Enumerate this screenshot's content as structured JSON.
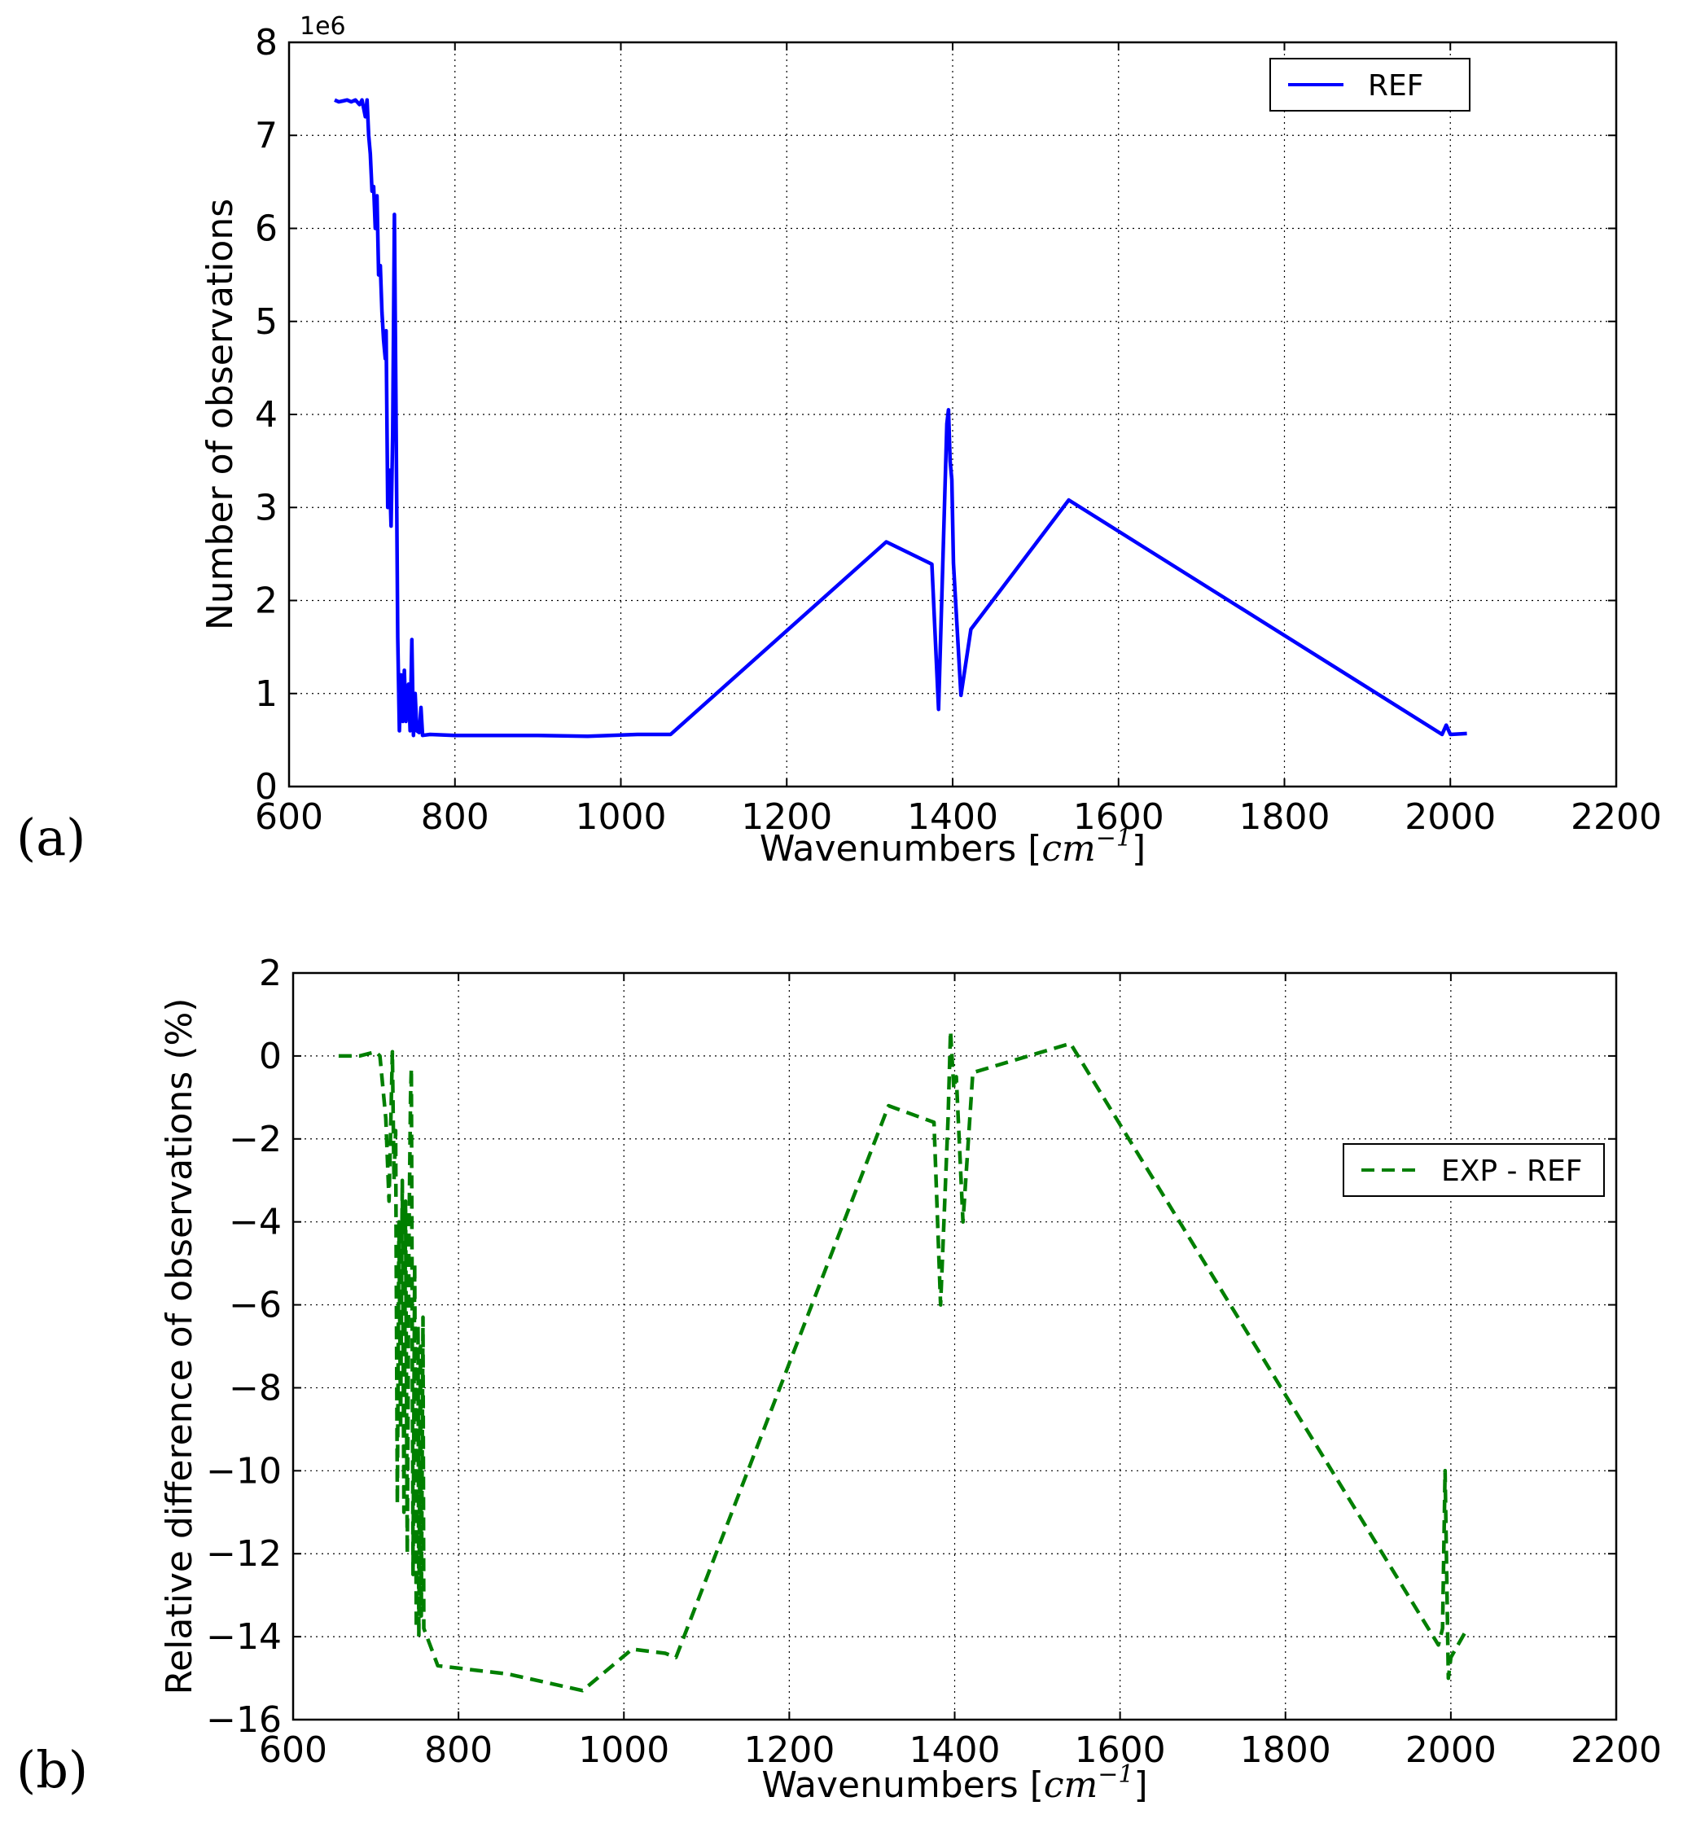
{
  "chart_data": [
    {
      "panel": "(a)",
      "type": "line",
      "xlabel_main": "Wavenumbers [",
      "xlabel_unit": "cm",
      "xlabel_exp": "−1",
      "xlabel_close": "]",
      "ylabel": "Number of observations",
      "y_offset_label": "1e6",
      "xlim": [
        600,
        2200
      ],
      "ylim": [
        0,
        8
      ],
      "xticks": [
        600,
        800,
        1000,
        1200,
        1400,
        1600,
        1800,
        2000,
        2200
      ],
      "yticks": [
        0,
        1,
        2,
        3,
        4,
        5,
        6,
        7,
        8
      ],
      "grid": true,
      "legend_position": "top-right",
      "series": [
        {
          "name": "REF",
          "style": "solid",
          "color": "#0000ff",
          "points": [
            [
              655,
              7.38
            ],
            [
              660,
              7.36
            ],
            [
              665,
              7.37
            ],
            [
              670,
              7.38
            ],
            [
              675,
              7.36
            ],
            [
              680,
              7.38
            ],
            [
              685,
              7.33
            ],
            [
              688,
              7.38
            ],
            [
              692,
              7.2
            ],
            [
              694,
              7.38
            ],
            [
              696,
              7.0
            ],
            [
              698,
              6.8
            ],
            [
              700,
              6.4
            ],
            [
              702,
              6.45
            ],
            [
              704,
              6.0
            ],
            [
              706,
              6.35
            ],
            [
              708,
              5.5
            ],
            [
              710,
              5.6
            ],
            [
              712,
              5.1
            ],
            [
              714,
              4.8
            ],
            [
              716,
              4.6
            ],
            [
              717,
              4.9
            ],
            [
              719,
              3.0
            ],
            [
              721,
              3.4
            ],
            [
              723,
              2.8
            ],
            [
              725,
              3.8
            ],
            [
              727,
              6.15
            ],
            [
              729,
              4.0
            ],
            [
              731,
              1.6
            ],
            [
              733,
              0.6
            ],
            [
              735,
              1.2
            ],
            [
              737,
              0.7
            ],
            [
              739,
              1.25
            ],
            [
              741,
              0.7
            ],
            [
              744,
              1.1
            ],
            [
              746,
              0.6
            ],
            [
              748,
              1.58
            ],
            [
              750,
              0.55
            ],
            [
              752,
              1.0
            ],
            [
              754,
              0.6
            ],
            [
              757,
              0.58
            ],
            [
              759,
              0.85
            ],
            [
              761,
              0.55
            ],
            [
              770,
              0.56
            ],
            [
              800,
              0.55
            ],
            [
              900,
              0.55
            ],
            [
              960,
              0.54
            ],
            [
              1020,
              0.56
            ],
            [
              1060,
              0.56
            ],
            [
              1320,
              2.63
            ],
            [
              1375,
              2.39
            ],
            [
              1383,
              0.83
            ],
            [
              1393,
              3.9
            ],
            [
              1395,
              4.05
            ],
            [
              1397,
              3.5
            ],
            [
              1399,
              3.3
            ],
            [
              1401,
              2.4
            ],
            [
              1410,
              0.98
            ],
            [
              1422,
              1.69
            ],
            [
              1540,
              3.08
            ],
            [
              1990,
              0.56
            ],
            [
              1995,
              0.66
            ],
            [
              2000,
              0.56
            ],
            [
              2020,
              0.57
            ]
          ]
        }
      ]
    },
    {
      "panel": "(b)",
      "type": "line",
      "xlabel_main": "Wavenumbers [",
      "xlabel_unit": "cm",
      "xlabel_exp": "−1",
      "xlabel_close": "]",
      "ylabel": "Relative difference of observations (%)",
      "xlim": [
        600,
        2200
      ],
      "ylim": [
        -16,
        2
      ],
      "xticks": [
        600,
        800,
        1000,
        1200,
        1400,
        1600,
        1800,
        2000,
        2200
      ],
      "yticks": [
        -16,
        -14,
        -12,
        -10,
        -8,
        -6,
        -4,
        -2,
        0,
        2
      ],
      "grid": true,
      "legend_position": "center-right",
      "series": [
        {
          "name": "EXP - REF",
          "style": "dashed",
          "color": "#007f00",
          "points": [
            [
              655,
              0.0
            ],
            [
              680,
              0.0
            ],
            [
              700,
              0.1
            ],
            [
              705,
              0.0
            ],
            [
              712,
              -1.5
            ],
            [
              716,
              -3.5
            ],
            [
              720,
              0.1
            ],
            [
              722,
              -3.0
            ],
            [
              724,
              -1.8
            ],
            [
              726,
              -10.8
            ],
            [
              728,
              -4.0
            ],
            [
              730,
              -9.0
            ],
            [
              732,
              -3.0
            ],
            [
              734,
              -11.0
            ],
            [
              736,
              -3.5
            ],
            [
              738,
              -12.0
            ],
            [
              740,
              -4.5
            ],
            [
              742,
              -1.0
            ],
            [
              743,
              -0.3
            ],
            [
              745,
              -12.5
            ],
            [
              747,
              -5.0
            ],
            [
              749,
              -13.8
            ],
            [
              751,
              -6.5
            ],
            [
              752,
              -14.0
            ],
            [
              754,
              -7.0
            ],
            [
              755,
              -13.5
            ],
            [
              757,
              -6.3
            ],
            [
              758,
              -13.8
            ],
            [
              775,
              -14.7
            ],
            [
              860,
              -14.9
            ],
            [
              950,
              -15.3
            ],
            [
              1010,
              -14.3
            ],
            [
              1050,
              -14.4
            ],
            [
              1063,
              -14.5
            ],
            [
              1320,
              -1.2
            ],
            [
              1375,
              -1.6
            ],
            [
              1383,
              -6.0
            ],
            [
              1392,
              -1.5
            ],
            [
              1395,
              0.6
            ],
            [
              1399,
              -0.8
            ],
            [
              1402,
              -0.5
            ],
            [
              1410,
              -4.0
            ],
            [
              1422,
              -0.4
            ],
            [
              1540,
              0.3
            ],
            [
              1985,
              -14.2
            ],
            [
              1990,
              -13.8
            ],
            [
              1993,
              -10.0
            ],
            [
              1997,
              -15.0
            ],
            [
              2000,
              -14.5
            ],
            [
              2020,
              -13.8
            ]
          ]
        }
      ]
    }
  ]
}
